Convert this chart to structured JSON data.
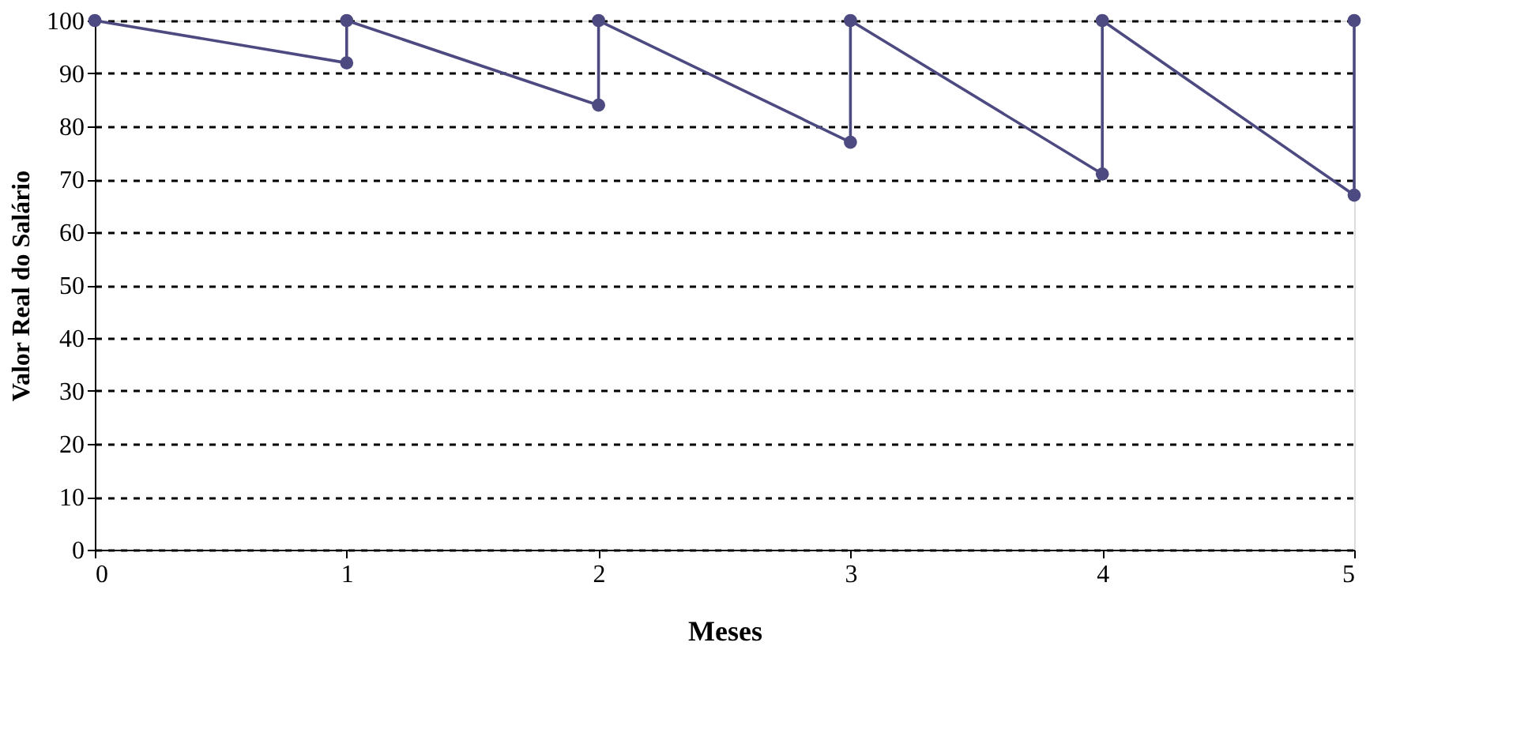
{
  "chart_data": {
    "type": "line",
    "xlabel": "Meses",
    "ylabel": "Valor Real do Salário",
    "series": [
      {
        "color": "#4c4a80",
        "x": [
          0,
          1,
          1,
          2,
          2,
          3,
          3,
          4,
          4,
          5,
          5
        ],
        "values": [
          100,
          92,
          100,
          84,
          100,
          77,
          100,
          71,
          100,
          67,
          100
        ]
      }
    ],
    "xlim": [
      0,
      5
    ],
    "xticks": [
      0,
      1,
      2,
      3,
      4,
      5
    ],
    "ylim": [
      0,
      100
    ],
    "yticks": [
      0,
      10,
      20,
      30,
      40,
      50,
      60,
      70,
      80,
      90,
      100
    ],
    "grid": "y",
    "marker": "circle",
    "line_style": "solid",
    "legend": false
  }
}
